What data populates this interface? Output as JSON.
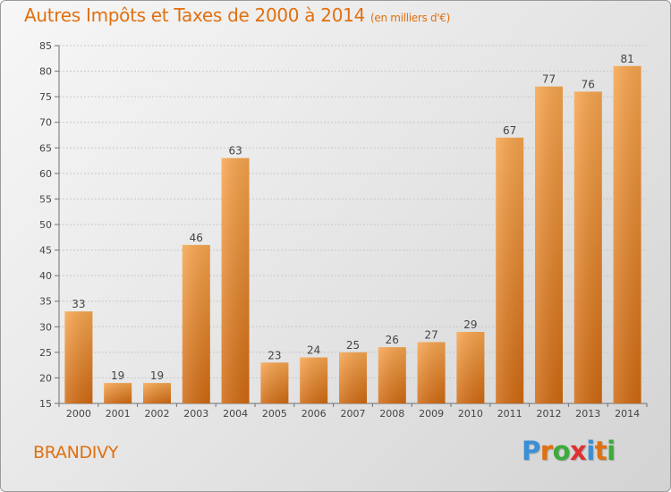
{
  "title": {
    "main": "Autres Impôts et Taxes de 2000 à 2014",
    "unit": "(en milliers d'€)"
  },
  "commune": "BRANDIVY",
  "logo": {
    "text": "Proxiti",
    "letters": [
      {
        "ch": "P",
        "color": "#3b8fd6"
      },
      {
        "ch": "r",
        "color": "#e07010"
      },
      {
        "ch": "o",
        "color": "#3bab3b"
      },
      {
        "ch": "x",
        "color": "#e03030"
      },
      {
        "ch": "i",
        "color": "#3b8fd6"
      },
      {
        "ch": "t",
        "color": "#e07010"
      },
      {
        "ch": "i",
        "color": "#3bab3b"
      }
    ]
  },
  "colors": {
    "accent": "#e07010",
    "bar_top": "#f7a54e",
    "bar_bottom": "#d06a12",
    "axis": "#707070",
    "grid": "#c8c8c8"
  },
  "chart_data": {
    "type": "bar",
    "title": "Autres Impôts et Taxes de 2000 à 2014",
    "subtitle": "(en milliers d'€)",
    "xlabel": "",
    "ylabel": "",
    "categories": [
      "2000",
      "2001",
      "2002",
      "2003",
      "2004",
      "2005",
      "2006",
      "2007",
      "2008",
      "2009",
      "2010",
      "2011",
      "2012",
      "2013",
      "2014"
    ],
    "values": [
      33,
      19,
      19,
      46,
      63,
      23,
      24,
      25,
      26,
      27,
      29,
      67,
      77,
      76,
      81
    ],
    "ylim": [
      15,
      85
    ],
    "yticks": [
      15,
      20,
      25,
      30,
      35,
      40,
      45,
      50,
      55,
      60,
      65,
      70,
      75,
      80,
      85
    ],
    "grid": true,
    "data_labels": true
  }
}
